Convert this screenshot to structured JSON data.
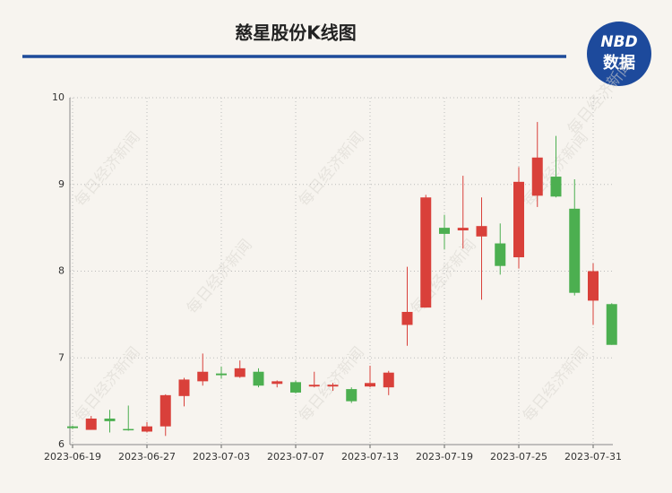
{
  "chart_data": {
    "type": "candlestick",
    "title": "慈星股份K线图",
    "logo": {
      "top": "NBD",
      "bottom": "数据"
    },
    "watermark": "每日经济新闻",
    "categories": [
      "2023-06-19",
      null,
      null,
      null,
      "2023-06-27",
      null,
      null,
      null,
      "2023-07-03",
      null,
      null,
      null,
      "2023-07-07",
      null,
      null,
      null,
      "2023-07-13",
      null,
      null,
      null,
      "2023-07-19",
      null,
      null,
      null,
      "2023-07-25",
      null,
      null,
      null,
      "2023-07-31",
      null
    ],
    "open": [
      6.21,
      6.17,
      6.3,
      6.18,
      6.15,
      6.21,
      6.56,
      6.73,
      6.82,
      6.78,
      6.84,
      6.7,
      6.72,
      6.67,
      6.67,
      6.64,
      6.67,
      6.66,
      7.38,
      7.58,
      8.5,
      8.47,
      8.4,
      8.32,
      8.16,
      8.87,
      9.09,
      8.72,
      7.66,
      7.62
    ],
    "high": [
      6.22,
      6.33,
      6.4,
      6.45,
      6.26,
      6.58,
      6.77,
      7.05,
      6.9,
      6.97,
      6.88,
      6.74,
      6.74,
      6.84,
      6.71,
      6.66,
      6.91,
      6.85,
      8.05,
      8.88,
      8.65,
      9.1,
      8.85,
      8.55,
      9.2,
      9.72,
      9.56,
      9.06,
      8.09,
      7.63
    ],
    "low": [
      6.18,
      6.17,
      6.14,
      6.16,
      6.14,
      6.1,
      6.44,
      6.68,
      6.76,
      6.77,
      6.66,
      6.66,
      6.59,
      6.66,
      6.62,
      6.48,
      6.66,
      6.57,
      7.14,
      7.58,
      8.25,
      8.26,
      7.67,
      7.96,
      8.03,
      8.74,
      8.85,
      7.72,
      7.38,
      7.15
    ],
    "close": [
      6.19,
      6.3,
      6.27,
      6.17,
      6.21,
      6.57,
      6.75,
      6.84,
      6.8,
      6.88,
      6.68,
      6.73,
      6.6,
      6.69,
      6.69,
      6.5,
      6.71,
      6.83,
      7.53,
      8.85,
      8.43,
      8.5,
      8.52,
      8.06,
      9.03,
      9.31,
      8.86,
      7.75,
      8.0,
      7.15
    ],
    "up_color": "#d9403a",
    "down_color": "#4caf50",
    "ylim": [
      6,
      10
    ],
    "yticks": [
      6,
      7,
      8,
      9,
      10
    ],
    "grid": true
  }
}
